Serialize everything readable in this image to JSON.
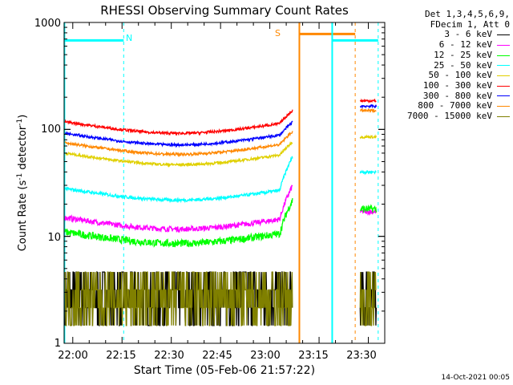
{
  "chart_data": {
    "type": "line",
    "title": "RHESSI Observing Summary Count Rates",
    "xlabel": "Start Time (05-Feb-06 21:57:22)",
    "ylabel": "Count Rate (s",
    "ylabel_sup1": "-1",
    "ylabel_mid": " detector",
    "ylabel_sup2": "-1",
    "ylabel_end": ")",
    "y_scale": "log",
    "ylim": [
      1,
      1000
    ],
    "xlim": [
      "21:57:22",
      "23:35:00"
    ],
    "x_ticks": [
      "22:00",
      "22:15",
      "22:30",
      "22:45",
      "23:00",
      "23:15",
      "23:30"
    ],
    "y_ticks": [
      "1",
      "10",
      "100",
      "1000"
    ],
    "legend_header": [
      "Det 1,3,4,5,6,9,",
      "FDecim 1, Att 0"
    ],
    "series": [
      {
        "name": "3 - 6 keV",
        "color": "#000000",
        "level": 2.7,
        "noise": 0.14,
        "post": 2.6
      },
      {
        "name": "6 - 12 keV",
        "color": "#ff00ff",
        "level": 15,
        "noise": 0.025,
        "post": 17
      },
      {
        "name": "12 - 25 keV",
        "color": "#00ff00",
        "level": 11,
        "noise": 0.035,
        "post": 18
      },
      {
        "name": "25 - 50 keV",
        "color": "#00ffff",
        "level": 28,
        "noise": 0.015,
        "post": 40
      },
      {
        "name": "50 - 100 keV",
        "color": "#e0d000",
        "level": 60,
        "noise": 0.012,
        "post": 85
      },
      {
        "name": "100 - 300 keV",
        "color": "#ff0000",
        "level": 118,
        "noise": 0.012,
        "post": 185
      },
      {
        "name": "300 - 800 keV",
        "color": "#0000ff",
        "level": 92,
        "noise": 0.012,
        "post": 165
      },
      {
        "name": "800 - 7000 keV",
        "color": "#ff8800",
        "level": 75,
        "noise": 0.012,
        "post": 150
      },
      {
        "name": "7000 - 15000 keV",
        "color": "#808000",
        "level": 2.6,
        "noise": 0.14,
        "post": 2.6
      }
    ],
    "flags": {
      "night": {
        "label": "N",
        "color": "#00ffff"
      },
      "saa": {
        "label": "S",
        "color": "#ff8800"
      }
    },
    "footer": "14-Oct-2021 00:05"
  }
}
